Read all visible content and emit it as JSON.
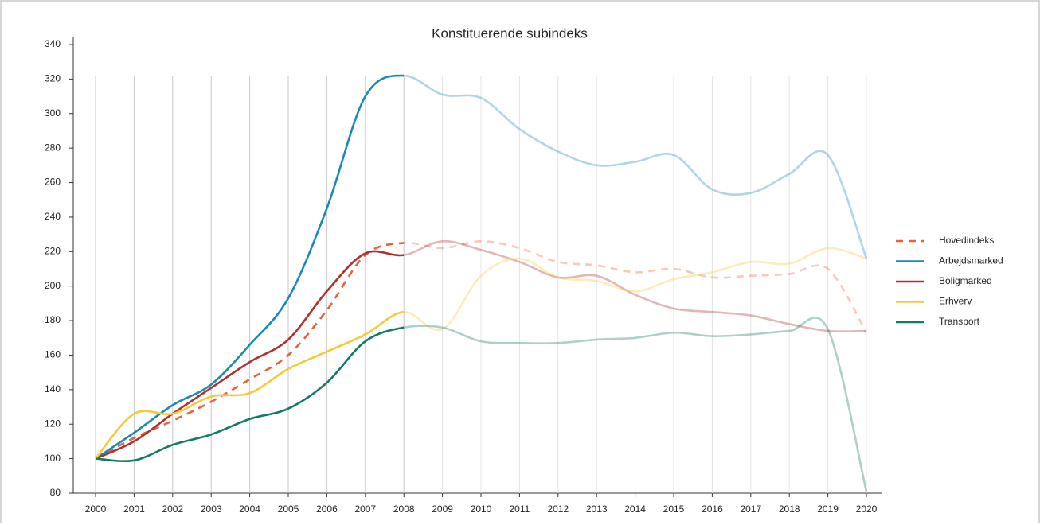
{
  "chart_data": {
    "type": "line",
    "title": "Konstituerende subindeks",
    "categories": [
      "2000",
      "2001",
      "2002",
      "2003",
      "2004",
      "2005",
      "2006",
      "2007",
      "2008",
      "2009",
      "2010",
      "2011",
      "2012",
      "2013",
      "2014",
      "2015",
      "2016",
      "2017",
      "2018",
      "2019",
      "2020"
    ],
    "series": [
      {
        "name": "Hovedindeks",
        "color": "#e8603c",
        "style": "dashed",
        "values": [
          100,
          112,
          122,
          133,
          146,
          160,
          186,
          218,
          225,
          222,
          226,
          222,
          214,
          212,
          208,
          210,
          205,
          206,
          207,
          210,
          173
        ]
      },
      {
        "name": "Arbejdsmarked",
        "color": "#1a8ab5",
        "style": "solid",
        "values": [
          100,
          115,
          131,
          143,
          166,
          193,
          245,
          310,
          322,
          311,
          309,
          291,
          278,
          270,
          272,
          276,
          256,
          254,
          265,
          276,
          216
        ]
      },
      {
        "name": "Boligmarked",
        "color": "#b03030",
        "style": "solid",
        "values": [
          100,
          110,
          126,
          141,
          156,
          169,
          197,
          219,
          218,
          226,
          221,
          214,
          205,
          206,
          195,
          187,
          185,
          183,
          178,
          174,
          174
        ]
      },
      {
        "name": "Erhverv",
        "color": "#f5c93a",
        "style": "solid",
        "values": [
          100,
          126,
          126,
          136,
          138,
          152,
          162,
          172,
          185,
          175,
          206,
          216,
          205,
          203,
          197,
          204,
          208,
          214,
          213,
          222,
          216
        ]
      },
      {
        "name": "Transport",
        "color": "#127a66",
        "style": "solid",
        "values": [
          100,
          99,
          108,
          114,
          123,
          129,
          144,
          168,
          176,
          176,
          168,
          167,
          167,
          169,
          170,
          173,
          171,
          172,
          174,
          175,
          81
        ]
      }
    ],
    "ylim": [
      80,
      340
    ],
    "yticks": [
      80,
      100,
      120,
      140,
      160,
      180,
      200,
      220,
      240,
      260,
      280,
      300,
      320,
      340
    ],
    "grid": true,
    "legend": "right"
  }
}
